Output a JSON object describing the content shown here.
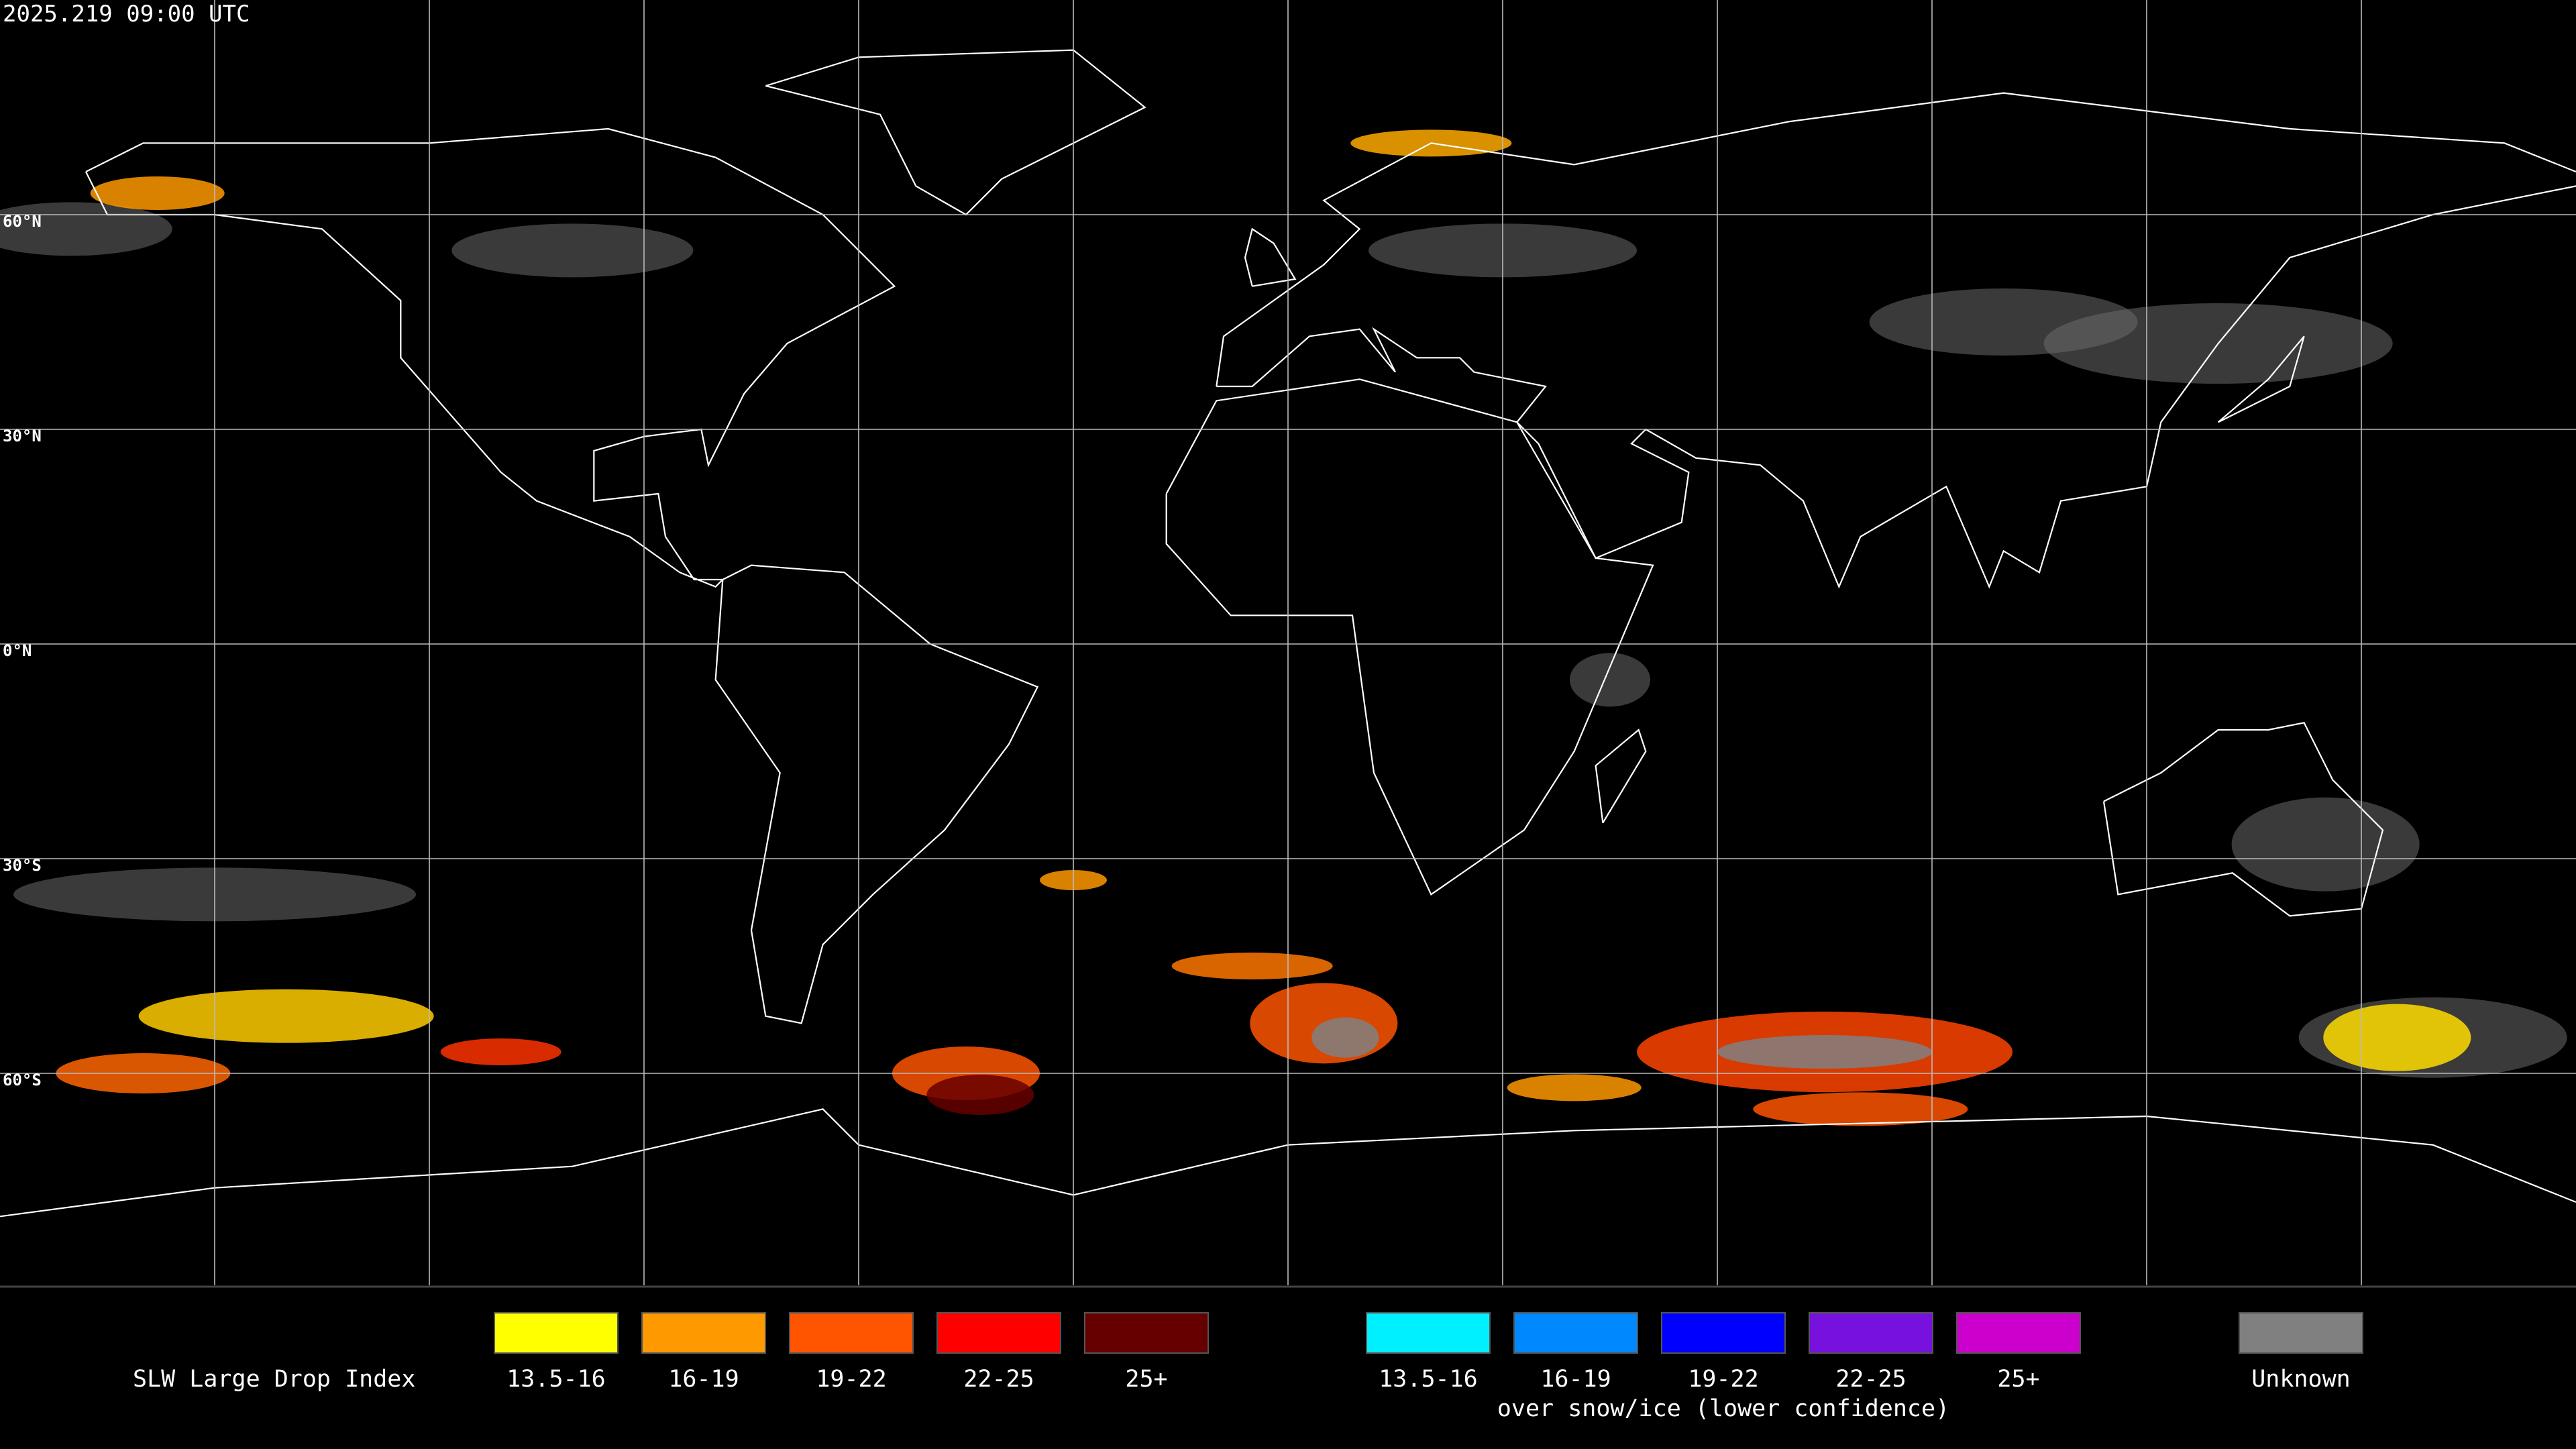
{
  "header": {
    "timestamp": "2025.219 09:00 UTC"
  },
  "map": {
    "lat_labels": [
      "60°N",
      "30°N",
      "0°N",
      "30°S",
      "60°S"
    ]
  },
  "legend": {
    "title": "SLW Large Drop Index",
    "warm": [
      {
        "label": "13.5-16",
        "color": "#ffff00"
      },
      {
        "label": "16-19",
        "color": "#ff9900"
      },
      {
        "label": "19-22",
        "color": "#ff5500"
      },
      {
        "label": "22-25",
        "color": "#ff0000"
      },
      {
        "label": "25+",
        "color": "#660000"
      }
    ],
    "cold": [
      {
        "label": "13.5-16",
        "color": "#00f0ff"
      },
      {
        "label": "16-19",
        "color": "#0088ff"
      },
      {
        "label": "19-22",
        "color": "#0000ff"
      },
      {
        "label": "22-25",
        "color": "#7711dd"
      },
      {
        "label": "25+",
        "color": "#cc00cc"
      }
    ],
    "note": "over snow/ice (lower confidence)",
    "unknown": {
      "label": "Unknown",
      "color": "#808080"
    }
  }
}
